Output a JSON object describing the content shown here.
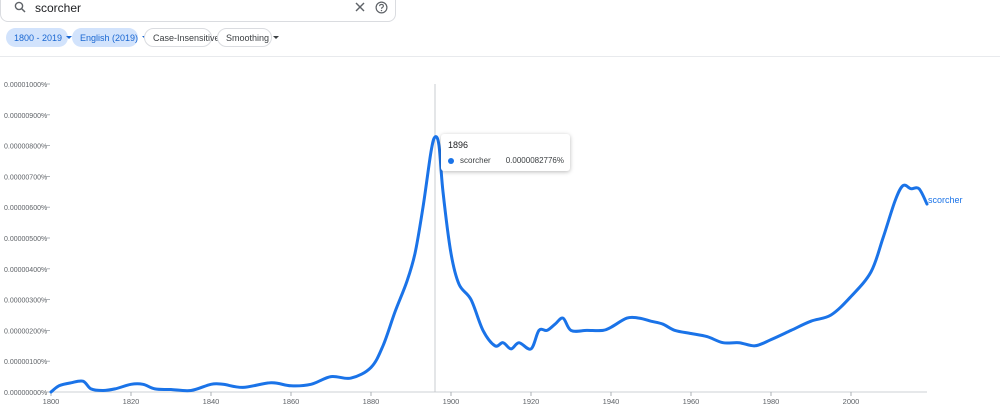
{
  "search": {
    "query": "scorcher"
  },
  "filters": [
    {
      "label": "1800 - 2019",
      "dropdown": true,
      "active": true
    },
    {
      "label": "English (2019)",
      "dropdown": true,
      "active": true
    },
    {
      "label": "Case-Insensitive",
      "dropdown": false,
      "active": false
    },
    {
      "label": "Smoothing",
      "dropdown": true,
      "active": false
    }
  ],
  "tooltip": {
    "year": "1896",
    "series": "scorcher",
    "value": "0.0000082776%"
  },
  "colors": {
    "series": "#1a73e8",
    "accent_chip": "#d2e3fc"
  },
  "chart_data": {
    "type": "line",
    "xlim": [
      1800,
      2019
    ],
    "ylim": [
      0,
      1e-05
    ],
    "x_ticks": [
      "1800",
      "1820",
      "1840",
      "1860",
      "1880",
      "1900",
      "1920",
      "1940",
      "1960",
      "1980",
      "2000"
    ],
    "y_ticks": [
      "0.00000000%",
      "0.00000100%",
      "0.00000200%",
      "0.00000300%",
      "0.00000400%",
      "0.00000500%",
      "0.00000600%",
      "0.00000700%",
      "0.00000800%",
      "0.00000900%",
      "0.00001000%"
    ],
    "series": [
      {
        "name": "scorcher",
        "points": [
          [
            1800,
            0.0
          ],
          [
            1802,
            2e-07
          ],
          [
            1805,
            3e-07
          ],
          [
            1808,
            3.5e-07
          ],
          [
            1810,
            1e-07
          ],
          [
            1813,
            5e-08
          ],
          [
            1816,
            1e-07
          ],
          [
            1820,
            2.5e-07
          ],
          [
            1823,
            2.5e-07
          ],
          [
            1826,
            1e-07
          ],
          [
            1830,
            8e-08
          ],
          [
            1835,
            5e-08
          ],
          [
            1840,
            2.5e-07
          ],
          [
            1843,
            2.5e-07
          ],
          [
            1848,
            1.5e-07
          ],
          [
            1855,
            3e-07
          ],
          [
            1860,
            2e-07
          ],
          [
            1865,
            2.5e-07
          ],
          [
            1870,
            5e-07
          ],
          [
            1875,
            4.5e-07
          ],
          [
            1880,
            8e-07
          ],
          [
            1883,
            1.5e-06
          ],
          [
            1886,
            2.6e-06
          ],
          [
            1889,
            3.6e-06
          ],
          [
            1891,
            4.5e-06
          ],
          [
            1893,
            6e-06
          ],
          [
            1895,
            7.8e-06
          ],
          [
            1896,
            8.2776e-06
          ],
          [
            1897,
            8e-06
          ],
          [
            1898,
            6.5e-06
          ],
          [
            1900,
            4.5e-06
          ],
          [
            1902,
            3.5e-06
          ],
          [
            1905,
            3e-06
          ],
          [
            1908,
            2e-06
          ],
          [
            1911,
            1.5e-06
          ],
          [
            1913,
            1.6e-06
          ],
          [
            1915,
            1.4e-06
          ],
          [
            1917,
            1.6e-06
          ],
          [
            1920,
            1.4e-06
          ],
          [
            1922,
            2e-06
          ],
          [
            1924,
            2e-06
          ],
          [
            1926,
            2.2e-06
          ],
          [
            1928,
            2.4e-06
          ],
          [
            1930,
            2e-06
          ],
          [
            1934,
            2e-06
          ],
          [
            1938,
            2e-06
          ],
          [
            1940,
            2.1e-06
          ],
          [
            1944,
            2.4e-06
          ],
          [
            1947,
            2.4e-06
          ],
          [
            1950,
            2.3e-06
          ],
          [
            1953,
            2.2e-06
          ],
          [
            1956,
            2e-06
          ],
          [
            1960,
            1.9e-06
          ],
          [
            1964,
            1.8e-06
          ],
          [
            1968,
            1.6e-06
          ],
          [
            1972,
            1.6e-06
          ],
          [
            1976,
            1.5e-06
          ],
          [
            1980,
            1.7e-06
          ],
          [
            1985,
            2e-06
          ],
          [
            1990,
            2.3e-06
          ],
          [
            1995,
            2.5e-06
          ],
          [
            2000,
            3.1e-06
          ],
          [
            2005,
            3.9e-06
          ],
          [
            2008,
            5e-06
          ],
          [
            2011,
            6.2e-06
          ],
          [
            2013,
            6.7e-06
          ],
          [
            2015,
            6.6e-06
          ],
          [
            2017,
            6.6e-06
          ],
          [
            2019,
            6.1e-06
          ]
        ]
      }
    ]
  }
}
